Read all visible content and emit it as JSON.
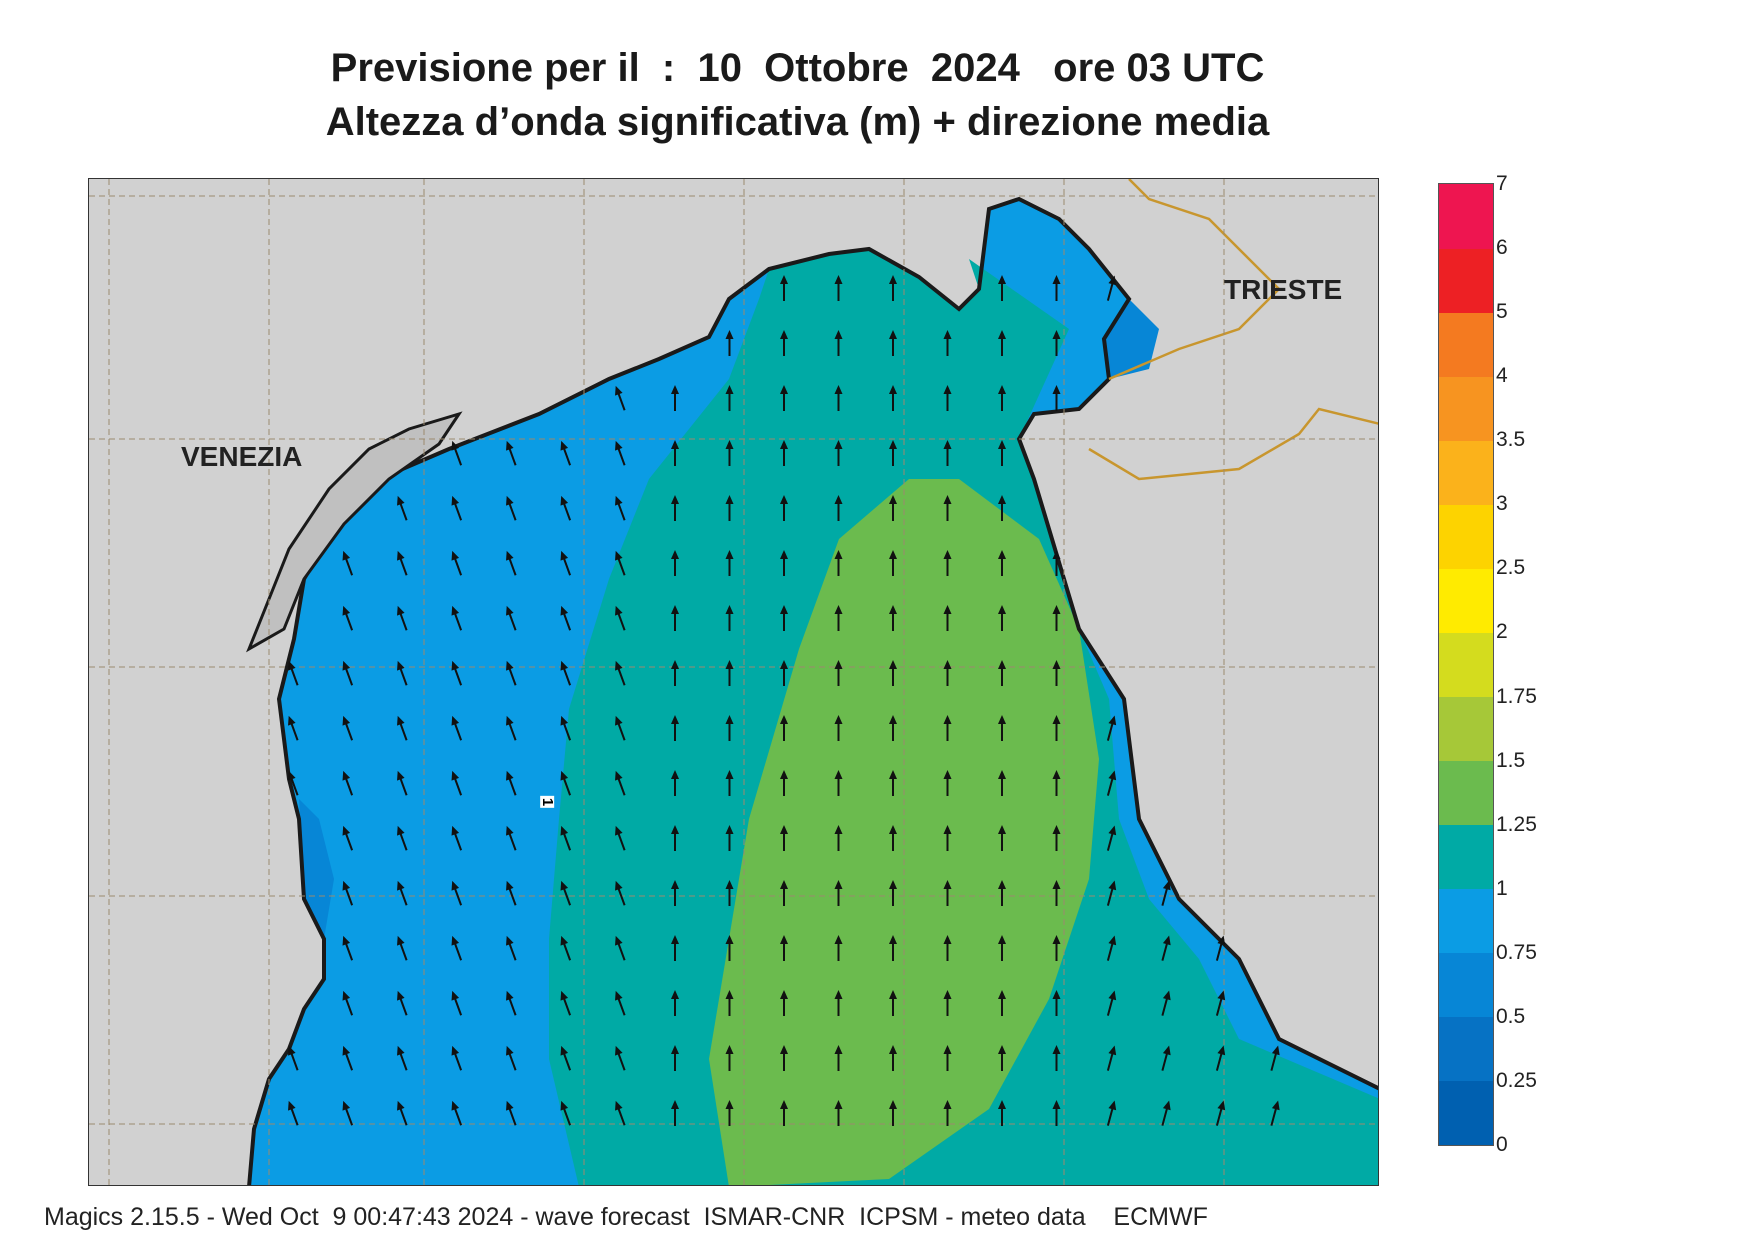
{
  "title": {
    "line1": "Previsione per il  :  10  Ottobre  2024   ore 03 UTC",
    "line2": "Altezza d’onda significativa (m) + direzione media"
  },
  "map_labels": {
    "venezia": "VENEZIA",
    "trieste": "TRIESTE",
    "contour_label": "1"
  },
  "legend": {
    "levels": [
      {
        "value": "0",
        "color": "#0060b0"
      },
      {
        "value": "0.25",
        "color": "#0672c4"
      },
      {
        "value": "0.5",
        "color": "#0786d6"
      },
      {
        "value": "0.75",
        "color": "#0b9ce4"
      },
      {
        "value": "1",
        "color": "#00aaa5"
      },
      {
        "value": "1.25",
        "color": "#6bbb4e"
      },
      {
        "value": "1.5",
        "color": "#a6c838"
      },
      {
        "value": "1.75",
        "color": "#d4dc1e"
      },
      {
        "value": "2",
        "color": "#ffeb00"
      },
      {
        "value": "2.5",
        "color": "#fdd300"
      },
      {
        "value": "3",
        "color": "#fbb21b"
      },
      {
        "value": "3.5",
        "color": "#f79420"
      },
      {
        "value": "4",
        "color": "#f47a20"
      },
      {
        "value": "5",
        "color": "#ed2024"
      },
      {
        "value": "6",
        "color": "#ee1550"
      },
      {
        "value": "7",
        "color": ""
      }
    ]
  },
  "colors": {
    "land": "#d1d1d1",
    "coast": "#1a1a1a",
    "border": "#c8962e",
    "arrow": "#111111"
  },
  "footer": "Magics 2.15.5 - Wed Oct  9 00:47:43 2024 - wave forecast  ISMAR-CNR  ICPSM - meteo data    ECMWF"
}
